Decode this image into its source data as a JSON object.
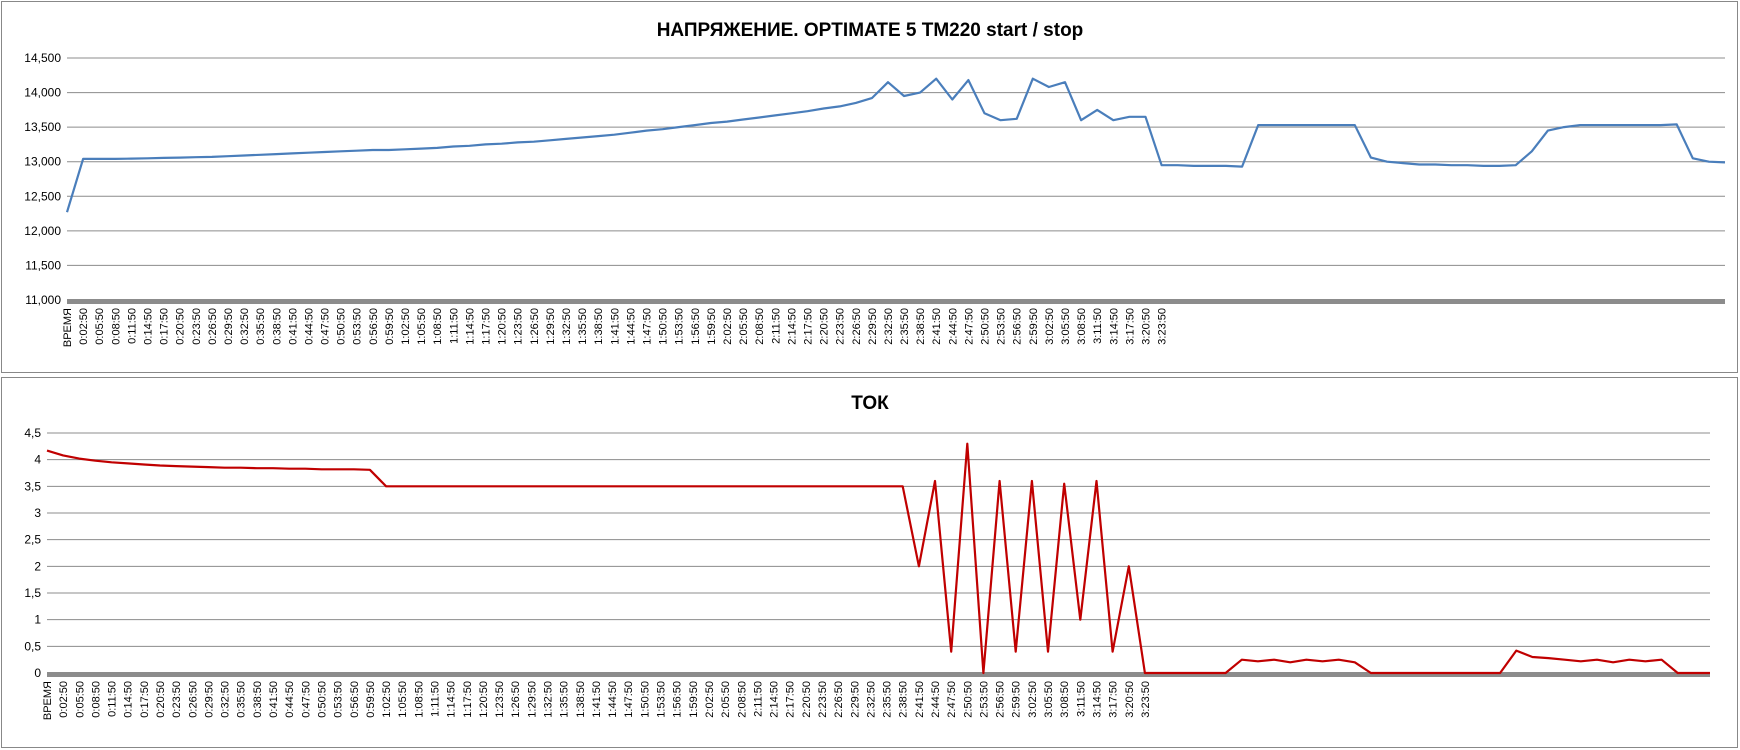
{
  "chart_data": [
    {
      "type": "line",
      "title": "НАПРЯЖЕНИЕ. OPTIMATE 5 TM220 start / stop",
      "categories": [
        "ВРЕМЯ",
        "0:02:50",
        "0:05:50",
        "0:08:50",
        "0:11:50",
        "0:14:50",
        "0:17:50",
        "0:20:50",
        "0:23:50",
        "0:26:50",
        "0:29:50",
        "0:32:50",
        "0:35:50",
        "0:38:50",
        "0:41:50",
        "0:44:50",
        "0:47:50",
        "0:50:50",
        "0:53:50",
        "0:56:50",
        "0:59:50",
        "1:02:50",
        "1:05:50",
        "1:08:50",
        "1:11:50",
        "1:14:50",
        "1:17:50",
        "1:20:50",
        "1:23:50",
        "1:26:50",
        "1:29:50",
        "1:32:50",
        "1:35:50",
        "1:38:50",
        "1:41:50",
        "1:44:50",
        "1:47:50",
        "1:50:50",
        "1:53:50",
        "1:56:50",
        "1:59:50",
        "2:02:50",
        "2:05:50",
        "2:08:50",
        "2:11:50",
        "2:14:50",
        "2:17:50",
        "2:20:50",
        "2:23:50",
        "2:26:50",
        "2:29:50",
        "2:32:50",
        "2:35:50",
        "2:38:50",
        "2:41:50",
        "2:44:50",
        "2:47:50",
        "2:50:50",
        "2:53:50",
        "2:56:50",
        "2:59:50",
        "3:02:50",
        "3:05:50",
        "3:08:50",
        "3:11:50",
        "3:14:50",
        "3:17:50",
        "3:20:50",
        "3:23:50",
        null,
        null,
        null,
        null,
        null,
        null,
        null,
        null,
        null,
        null,
        null,
        null,
        null,
        null,
        null,
        null,
        null,
        null,
        null,
        null,
        null,
        null,
        null,
        null,
        null,
        null,
        null,
        null,
        null,
        null,
        null,
        null,
        null,
        null,
        null
      ],
      "values": [
        12270,
        13040,
        13040,
        13040,
        13045,
        13050,
        13055,
        13060,
        13065,
        13070,
        13080,
        13090,
        13100,
        13110,
        13120,
        13130,
        13140,
        13150,
        13160,
        13170,
        13170,
        13180,
        13190,
        13200,
        13220,
        13230,
        13250,
        13260,
        13280,
        13290,
        13310,
        13330,
        13350,
        13370,
        13390,
        13420,
        13450,
        13470,
        13500,
        13530,
        13560,
        13580,
        13610,
        13640,
        13670,
        13700,
        13730,
        13770,
        13800,
        13850,
        13920,
        14150,
        13950,
        14000,
        14200,
        13900,
        14180,
        13700,
        13600,
        13620,
        14200,
        14080,
        14150,
        13600,
        13750,
        13600,
        13650,
        13650,
        12950,
        12950,
        12940,
        12940,
        12940,
        12930,
        13530,
        13530,
        13530,
        13530,
        13530,
        13530,
        13530,
        13060,
        13000,
        12980,
        12960,
        12960,
        12950,
        12950,
        12940,
        12940,
        12950,
        13150,
        13450,
        13500,
        13530,
        13530,
        13530,
        13530,
        13530,
        13530,
        13540,
        13050,
        13000,
        12990
      ],
      "color": "#4a7ebb",
      "ylim": [
        11000,
        14500
      ],
      "yticks": [
        {
          "value": 11000,
          "label": "11,000"
        },
        {
          "value": 11500,
          "label": "11,500"
        },
        {
          "value": 12000,
          "label": "12,000"
        },
        {
          "value": 12500,
          "label": "12,500"
        },
        {
          "value": 13000,
          "label": "13,000"
        },
        {
          "value": 13500,
          "label": "13,500"
        },
        {
          "value": 14000,
          "label": "14,000"
        },
        {
          "value": 14500,
          "label": "14,500"
        }
      ],
      "grid": true
    },
    {
      "type": "line",
      "title": "ТОК",
      "categories": [
        "ВРЕМЯ",
        "0:02:50",
        "0:05:50",
        "0:08:50",
        "0:11:50",
        "0:14:50",
        "0:17:50",
        "0:20:50",
        "0:23:50",
        "0:26:50",
        "0:29:50",
        "0:32:50",
        "0:35:50",
        "0:38:50",
        "0:41:50",
        "0:44:50",
        "0:47:50",
        "0:50:50",
        "0:53:50",
        "0:56:50",
        "0:59:50",
        "1:02:50",
        "1:05:50",
        "1:08:50",
        "1:11:50",
        "1:14:50",
        "1:17:50",
        "1:20:50",
        "1:23:50",
        "1:26:50",
        "1:29:50",
        "1:32:50",
        "1:35:50",
        "1:38:50",
        "1:41:50",
        "1:44:50",
        "1:47:50",
        "1:50:50",
        "1:53:50",
        "1:56:50",
        "1:59:50",
        "2:02:50",
        "2:05:50",
        "2:08:50",
        "2:11:50",
        "2:14:50",
        "2:17:50",
        "2:20:50",
        "2:23:50",
        "2:26:50",
        "2:29:50",
        "2:32:50",
        "2:35:50",
        "2:38:50",
        "2:41:50",
        "2:44:50",
        "2:47:50",
        "2:50:50",
        "2:53:50",
        "2:56:50",
        "2:59:50",
        "3:02:50",
        "3:05:50",
        "3:08:50",
        "3:11:50",
        "3:14:50",
        "3:17:50",
        "3:20:50",
        "3:23:50",
        null,
        null,
        null,
        null,
        null,
        null,
        null,
        null,
        null,
        null,
        null,
        null,
        null,
        null,
        null,
        null,
        null,
        null,
        null,
        null,
        null,
        null,
        null,
        null,
        null,
        null,
        null,
        null,
        null,
        null,
        null,
        null,
        null,
        null,
        null
      ],
      "values": [
        4.17,
        4.08,
        4.02,
        3.98,
        3.95,
        3.93,
        3.91,
        3.89,
        3.88,
        3.87,
        3.86,
        3.85,
        3.85,
        3.84,
        3.84,
        3.83,
        3.83,
        3.82,
        3.82,
        3.82,
        3.81,
        3.5,
        3.5,
        3.5,
        3.5,
        3.5,
        3.5,
        3.5,
        3.5,
        3.5,
        3.5,
        3.5,
        3.5,
        3.5,
        3.5,
        3.5,
        3.5,
        3.5,
        3.5,
        3.5,
        3.5,
        3.5,
        3.5,
        3.5,
        3.5,
        3.5,
        3.5,
        3.5,
        3.5,
        3.5,
        3.5,
        3.5,
        3.5,
        3.5,
        2.0,
        3.6,
        0.4,
        4.3,
        0,
        3.6,
        0.4,
        3.6,
        0.4,
        3.55,
        1.0,
        3.6,
        0.4,
        2.0,
        0,
        0,
        0,
        0,
        0,
        0,
        0.25,
        0.22,
        0.25,
        0.2,
        0.25,
        0.22,
        0.25,
        0.2,
        0,
        0,
        0,
        0,
        0,
        0,
        0,
        0,
        0,
        0.42,
        0.3,
        0.28,
        0.25,
        0.22,
        0.25,
        0.2,
        0.25,
        0.22,
        0.25,
        0,
        0,
        0
      ],
      "color": "#c00000",
      "ylim": [
        0,
        4.5
      ],
      "yticks": [
        0,
        {
          "value": 0.5,
          "label": "0,5"
        },
        1,
        {
          "value": 1.5,
          "label": "1,5"
        },
        2,
        {
          "value": 2.5,
          "label": "2,5"
        },
        3,
        {
          "value": 3.5,
          "label": "3,5"
        },
        4,
        {
          "value": 4.5,
          "label": "4,5"
        }
      ],
      "grid": true
    }
  ]
}
